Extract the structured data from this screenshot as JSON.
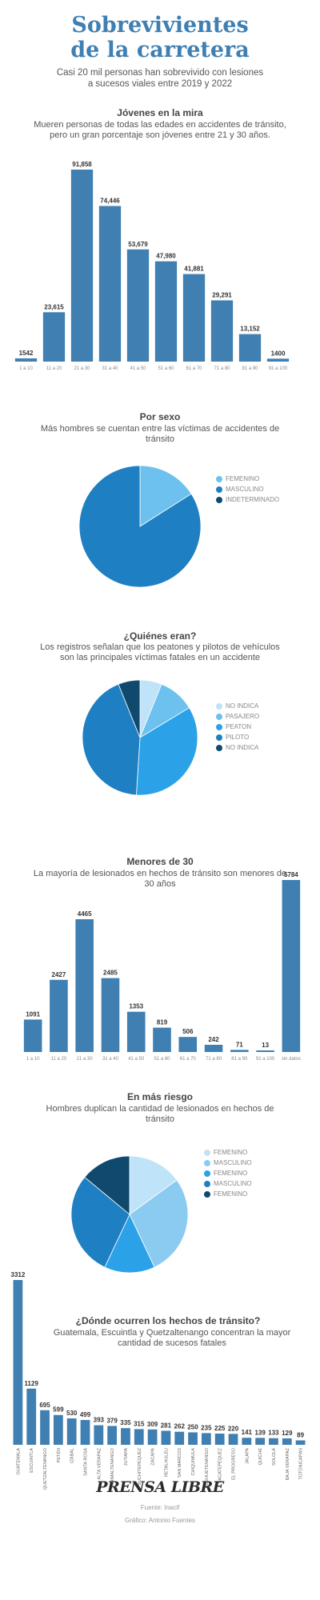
{
  "header": {
    "title_line1": "Sobrevivientes",
    "title_line2": "de la carretera",
    "subtitle_line1": "Casi 20 mil personas han sobrevivido con lesiones",
    "subtitle_line2": "a sucesos viales entre 2019 y 2022"
  },
  "colors": {
    "bar": "#3f7fb2",
    "sky": "#6cc1ef",
    "mid": "#1e7fc3",
    "dark": "#0f4a6e"
  },
  "sections": {
    "jovenes": {
      "title": "Jóvenes en la mira",
      "subtitle": "Mueren personas de todas las edades en accidentes de tránsito, pero un gran porcentaje son jóvenes entre 21 y 30 años."
    },
    "sexo": {
      "title": "Por sexo",
      "subtitle": "Más hombres se cuentan entre las víctimas de accidentes de tránsito"
    },
    "quienes": {
      "title": "¿Quiénes eran?",
      "subtitle": "Los registros señalan que los peatones y pilotos de vehículos son las principales víctimas fatales en un accidente"
    },
    "menores": {
      "title": "Menores de 30",
      "subtitle": "La mayoría de lesionados en hechos de tránsito son menores de 30 años"
    },
    "riesgo": {
      "title": "En más riesgo",
      "subtitle": "Hombres duplican la cantidad de lesionados en hechos de tránsito"
    },
    "donde": {
      "title": "¿Dónde ocurren los hechos de tránsito?",
      "subtitle": "Guatemala, Escuintla y Quetzaltenango concentran la mayor cantidad de sucesos fatales"
    }
  },
  "footer": {
    "logo": "PRENSA LIBRE",
    "source": "Fuente: Inacif",
    "credit": "Gráfico: Antonio Fuentes"
  },
  "chart_data": [
    {
      "type": "bar",
      "categories": [
        "1 a 10",
        "11 a 20",
        "21 a 30",
        "31 a 40",
        "41 a 50",
        "51 a 60",
        "61 a 70",
        "71 a 80",
        "81 a 90",
        "91 a 100"
      ],
      "value_labels": [
        "1542",
        "23,615",
        "91,858",
        "74,446",
        "53,679",
        "47,980",
        "41,881",
        "29,291",
        "13,152",
        "1400"
      ],
      "values": [
        1542,
        23615,
        91858,
        74446,
        53679,
        47980,
        41881,
        29291,
        13152,
        1400
      ]
    },
    {
      "type": "pie",
      "labels": [
        "FEMENINO",
        "MASCULINO",
        "INDETERMINADO"
      ],
      "values": [
        16,
        84,
        0
      ],
      "colors": [
        "#6cc1ef",
        "#1e7fc3",
        "#0f4a6e"
      ]
    },
    {
      "type": "pie",
      "labels": [
        "NO INDICA",
        "PASAJERO",
        "PEATON",
        "PILOTO",
        "NO INDICA"
      ],
      "values": [
        6,
        10,
        34,
        42,
        6
      ],
      "colors": [
        "#bfe3f8",
        "#6cc1ef",
        "#2ba2e8",
        "#1e7fc3",
        "#0f4a6e"
      ]
    },
    {
      "type": "bar",
      "categories": [
        "1 a 10",
        "11 a 20",
        "21 a 30",
        "31 a 40",
        "41 a 50",
        "51 a 60",
        "61 a 70",
        "71 a 80",
        "81 a 90",
        "91 a 100",
        "sin datos"
      ],
      "value_labels": [
        "1091",
        "2427",
        "4465",
        "2485",
        "1353",
        "819",
        "506",
        "242",
        "71",
        "13",
        "5784"
      ],
      "values": [
        1091,
        2427,
        4465,
        2485,
        1353,
        819,
        506,
        242,
        71,
        13,
        5784
      ]
    },
    {
      "type": "pie",
      "labels": [
        "FEMENINO",
        "MASCULINO",
        "FEMENINO",
        "MASCULINO",
        "FEMENINO"
      ],
      "values": [
        15,
        28,
        14,
        29,
        14
      ],
      "colors": [
        "#bfe3f8",
        "#8ccbf1",
        "#2ba2e8",
        "#1e7fc3",
        "#0f4a6e"
      ]
    },
    {
      "type": "bar",
      "categories": [
        "GUATEMALA",
        "ESCUINTLA",
        "QUETZALTENANGO",
        "PETÉN",
        "IZABAL",
        "SANTA ROSA",
        "ALTA VERAPAZ",
        "CHIMALTENANGO",
        "JUTIAPA",
        "SUCHITEPÉQUEZ",
        "ZACAPA",
        "RETALHULEU",
        "SAN MARCOS",
        "CHIQUIMULA",
        "HUEHUETENANGO",
        "SACATEPÉQUEZ",
        "EL PROGRESO",
        "JALAPA",
        "QUICHÉ",
        "SOLOLÁ",
        "BAJA VERAPAZ",
        "TOTONICAPÁN"
      ],
      "value_labels": [
        "3312",
        "1129",
        "695",
        "599",
        "530",
        "499",
        "393",
        "379",
        "335",
        "315",
        "309",
        "281",
        "262",
        "250",
        "235",
        "225",
        "220",
        "141",
        "139",
        "133",
        "129",
        "89"
      ],
      "values": [
        3312,
        1129,
        695,
        599,
        530,
        499,
        393,
        379,
        335,
        315,
        309,
        281,
        262,
        250,
        235,
        225,
        220,
        141,
        139,
        133,
        129,
        89
      ]
    }
  ]
}
